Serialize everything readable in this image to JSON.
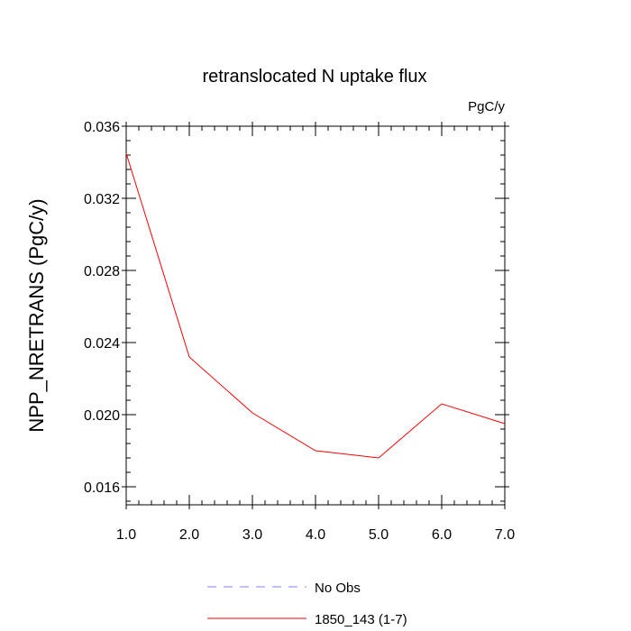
{
  "chart_data": {
    "type": "line",
    "title": "retranslocated N uptake flux",
    "units": "PgC/y",
    "xlabel": "",
    "ylabel": "NPP_NRETRANS  (PgC/y)",
    "xlim": [
      1.0,
      7.0
    ],
    "ylim": [
      0.015,
      0.036
    ],
    "xticks": [
      1.0,
      2.0,
      3.0,
      4.0,
      5.0,
      6.0,
      7.0
    ],
    "xtick_labels": [
      "1.0",
      "2.0",
      "3.0",
      "4.0",
      "5.0",
      "6.0",
      "7.0"
    ],
    "yticks": [
      0.016,
      0.02,
      0.024,
      0.028,
      0.032,
      0.036
    ],
    "ytick_labels": [
      "0.016",
      "0.020",
      "0.024",
      "0.028",
      "0.032",
      "0.036"
    ],
    "y_minor_step": 0.0008,
    "x_minor_step": 0.2,
    "series": [
      {
        "name": "1850_143 (1-7)",
        "color": "#ff0000",
        "x": [
          1,
          2,
          3,
          4,
          5,
          6,
          7
        ],
        "values": [
          0.0345,
          0.0232,
          0.0201,
          0.018,
          0.0176,
          0.0206,
          0.0195
        ]
      }
    ],
    "legend": {
      "placement": "bottom",
      "entries": [
        {
          "label": "No Obs",
          "style": "dashed",
          "color": "#8080ff"
        },
        {
          "label": "1850_143 (1-7)",
          "style": "solid",
          "color": "#ff0000"
        }
      ]
    }
  }
}
